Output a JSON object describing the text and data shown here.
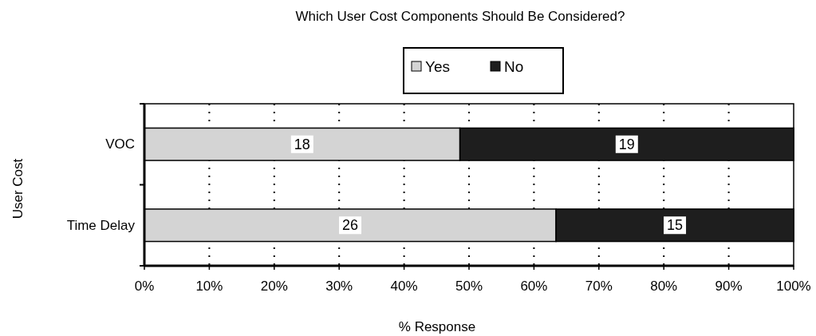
{
  "chart_data": {
    "type": "bar",
    "orientation": "horizontal",
    "stacked": true,
    "title": "Which User Cost Components Should Be Considered?",
    "xlabel": "% Response",
    "ylabel": "User Cost",
    "categories": [
      "VOC",
      "Time Delay"
    ],
    "series": [
      {
        "name": "Yes",
        "color": "#d4d4d4",
        "values": [
          48.6,
          63.4
        ]
      },
      {
        "name": "No",
        "color": "#1e1e1e",
        "values": [
          51.4,
          36.6
        ]
      }
    ],
    "annotations": [
      {
        "text": "18",
        "x": 24.3,
        "y": "VOC"
      },
      {
        "text": "19",
        "x": 74.3,
        "y": "VOC"
      },
      {
        "text": "26",
        "x": 31.7,
        "y": "Time Delay"
      },
      {
        "text": "15",
        "x": 81.7,
        "y": "Time Delay"
      }
    ],
    "xlim": [
      0,
      100
    ],
    "xticks": [
      {
        "value": 0,
        "label": "0%"
      },
      {
        "value": 10,
        "label": "10%"
      },
      {
        "value": 20,
        "label": "20%"
      },
      {
        "value": 30,
        "label": "30%"
      },
      {
        "value": 40,
        "label": "40%"
      },
      {
        "value": 50,
        "label": "50%"
      },
      {
        "value": 60,
        "label": "60%"
      },
      {
        "value": 70,
        "label": "70%"
      },
      {
        "value": 80,
        "label": "80%"
      },
      {
        "value": 90,
        "label": "90%"
      },
      {
        "value": 100,
        "label": "100%"
      }
    ],
    "grid": "x",
    "legend": "top"
  }
}
